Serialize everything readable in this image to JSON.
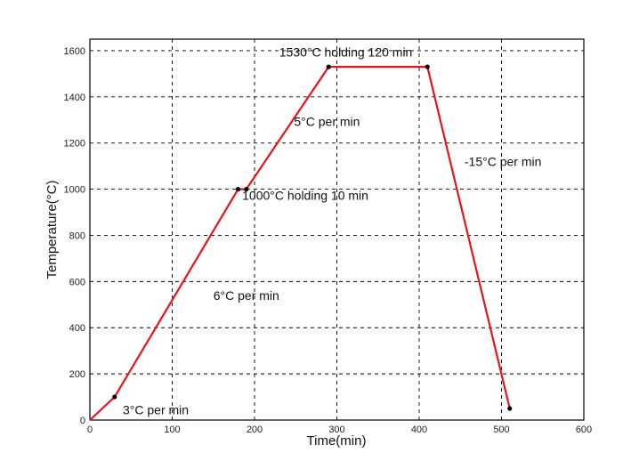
{
  "chart_data": {
    "type": "line",
    "xlabel": "Time(min)",
    "ylabel": "Temperature(°C)",
    "xlim": [
      0,
      600
    ],
    "ylim": [
      0,
      1650
    ],
    "x_ticks": [
      0,
      100,
      200,
      300,
      400,
      500,
      600
    ],
    "y_ticks": [
      0,
      200,
      400,
      600,
      800,
      1000,
      1200,
      1400,
      1600
    ],
    "grid": true,
    "series": [
      {
        "color": "#e8141c",
        "x": [
          0,
          30,
          180,
          190,
          290,
          410,
          510
        ],
        "y": [
          0,
          100,
          1000,
          1000,
          1530,
          1530,
          50
        ]
      }
    ],
    "annotations": [
      {
        "text": "3°C  per min",
        "x": 40,
        "y": 25
      },
      {
        "text": "6°C  per min",
        "x": 150,
        "y": 520
      },
      {
        "text": "1000°C  holding 10 min",
        "x": 185,
        "y": 955
      },
      {
        "text": "5°C  per min",
        "x": 248,
        "y": 1275
      },
      {
        "text": "1530°C  holding 120 min",
        "x": 230,
        "y": 1575
      },
      {
        "text": "-15°C  per min",
        "x": 455,
        "y": 1100
      }
    ]
  }
}
